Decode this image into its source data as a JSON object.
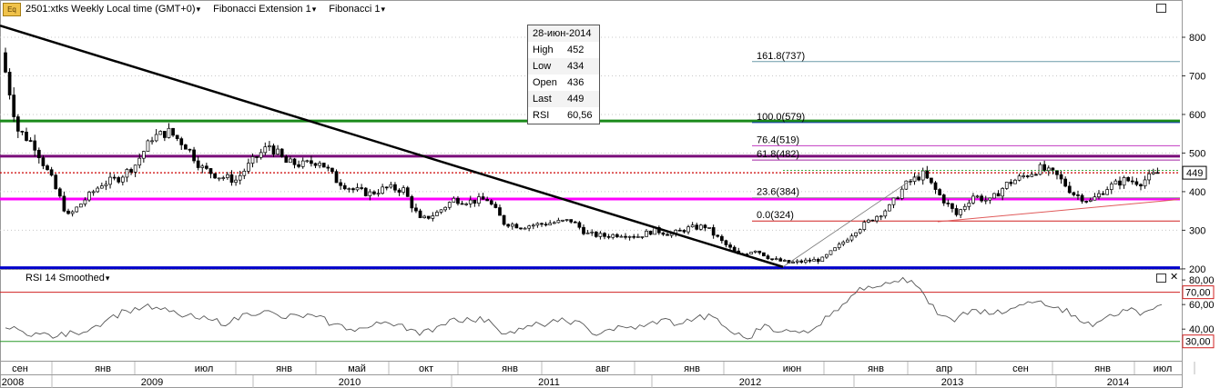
{
  "header": {
    "symbol": "2501:xtks Weekly Local time (GMT+0)",
    "study1": "Fibonacci Extension 1",
    "study2": "Fibonacci 1",
    "symbol_icon": "Eq"
  },
  "tooltip": {
    "date": "28-июн-2014",
    "rows": [
      {
        "k": "High",
        "v": "452"
      },
      {
        "k": "Low",
        "v": "434"
      },
      {
        "k": "Open",
        "v": "436"
      },
      {
        "k": "Last",
        "v": "449"
      },
      {
        "k": "RSI",
        "v": "60,56"
      }
    ]
  },
  "rsi_panel": {
    "title": "RSI 14 Smoothed"
  },
  "colors": {
    "up": "#ffffff",
    "down": "#000000",
    "trend": "#000000",
    "green": "#1a8a1a",
    "purple": "#7a0d7a",
    "magenta": "#ff00ff",
    "blue": "#0000cc",
    "red_dotted": "#cc0000",
    "grid": "#c8c8c8",
    "rsi_line": "#555555"
  },
  "chart_data": [
    {
      "type": "candlestick",
      "title": "",
      "y_ticks": [
        800,
        700,
        600,
        500,
        400,
        300,
        200
      ],
      "ylim": [
        195,
        840
      ],
      "last_price_label": "449",
      "x_ticks": [
        "сен",
        "янв",
        "июл",
        "янв",
        "май",
        "окт",
        "янв",
        "авг",
        "янв",
        "июн",
        "янв",
        "апр",
        "сен",
        "янв",
        "июл"
      ],
      "years": [
        "2008",
        "2009",
        "2010",
        "2011",
        "2012",
        "2013",
        "2014"
      ],
      "horizontal_levels": [
        {
          "name": "green",
          "value": 583
        },
        {
          "name": "purple",
          "value": 492
        },
        {
          "name": "magenta",
          "value": 381
        },
        {
          "name": "blue",
          "value": 203
        },
        {
          "name": "last-dotted",
          "value": 449
        }
      ],
      "fibonacci_extension": [
        {
          "label": "161.8(737)",
          "value": 737
        },
        {
          "label": "100.0(579)",
          "value": 579
        },
        {
          "label": "76.4(519)",
          "value": 519
        },
        {
          "label": "61.8(482)",
          "value": 482
        },
        {
          "label": "23.6(384)",
          "value": 384
        },
        {
          "label": "0.0(324)",
          "value": 324
        }
      ],
      "close_series": [
        {
          "period": "сен 2008",
          "close": 760
        },
        {
          "period": "окт 2008",
          "close": 560
        },
        {
          "period": "ноя 2008",
          "close": 520
        },
        {
          "period": "дек 2008",
          "close": 430
        },
        {
          "period": "янв 2009",
          "close": 335
        },
        {
          "period": "фев 2009",
          "close": 380
        },
        {
          "period": "мар 2009",
          "close": 420
        },
        {
          "period": "апр 2009",
          "close": 435
        },
        {
          "period": "май 2009",
          "close": 470
        },
        {
          "period": "июн 2009",
          "close": 540
        },
        {
          "period": "июл 2009",
          "close": 555
        },
        {
          "period": "авг 2009",
          "close": 520
        },
        {
          "period": "сен 2009",
          "close": 460
        },
        {
          "period": "окт 2009",
          "close": 440
        },
        {
          "period": "ноя 2009",
          "close": 430
        },
        {
          "period": "дек 2009",
          "close": 480
        },
        {
          "period": "янв 2010",
          "close": 520
        },
        {
          "period": "фев 2010",
          "close": 475
        },
        {
          "period": "мар 2010",
          "close": 470
        },
        {
          "period": "апр 2010",
          "close": 480
        },
        {
          "period": "май 2010",
          "close": 430
        },
        {
          "period": "июн 2010",
          "close": 405
        },
        {
          "period": "июл 2010",
          "close": 395
        },
        {
          "period": "авг 2010",
          "close": 410
        },
        {
          "period": "сен 2010",
          "close": 405
        },
        {
          "period": "окт 2010",
          "close": 325
        },
        {
          "period": "ноя 2010",
          "close": 345
        },
        {
          "period": "дек 2010",
          "close": 380
        },
        {
          "period": "янв 2011",
          "close": 375
        },
        {
          "period": "фев 2011",
          "close": 380
        },
        {
          "period": "мар 2011",
          "close": 320
        },
        {
          "period": "апр 2011",
          "close": 310
        },
        {
          "period": "май 2011",
          "close": 315
        },
        {
          "period": "июн 2011",
          "close": 320
        },
        {
          "period": "июл 2011",
          "close": 325
        },
        {
          "period": "авг 2011",
          "close": 290
        },
        {
          "period": "сен 2011",
          "close": 285
        },
        {
          "period": "окт 2011",
          "close": 290
        },
        {
          "period": "ноя 2011",
          "close": 285
        },
        {
          "period": "дек 2011",
          "close": 300
        },
        {
          "period": "янв 2012",
          "close": 290
        },
        {
          "period": "фев 2012",
          "close": 305
        },
        {
          "period": "мар 2012",
          "close": 310
        },
        {
          "period": "апр 2012",
          "close": 270
        },
        {
          "period": "май 2012",
          "close": 235
        },
        {
          "period": "июн 2012",
          "close": 250
        },
        {
          "period": "июл 2012",
          "close": 225
        },
        {
          "period": "авг 2012",
          "close": 215
        },
        {
          "period": "сен 2012",
          "close": 220
        },
        {
          "period": "окт 2012",
          "close": 225
        },
        {
          "period": "ноя 2012",
          "close": 260
        },
        {
          "period": "дек 2012",
          "close": 300
        },
        {
          "period": "янв 2013",
          "close": 330
        },
        {
          "period": "фев 2013",
          "close": 360
        },
        {
          "period": "мар 2013",
          "close": 420
        },
        {
          "period": "апр 2013",
          "close": 445
        },
        {
          "period": "май 2013",
          "close": 390
        },
        {
          "period": "июн 2013",
          "close": 340
        },
        {
          "period": "июл 2013",
          "close": 390
        },
        {
          "period": "авг 2013",
          "close": 375
        },
        {
          "period": "сен 2013",
          "close": 420
        },
        {
          "period": "окт 2013",
          "close": 440
        },
        {
          "period": "ноя 2013",
          "close": 460
        },
        {
          "period": "дек 2013",
          "close": 440
        },
        {
          "period": "янв 2014",
          "close": 395
        },
        {
          "period": "фев 2014",
          "close": 375
        },
        {
          "period": "мар 2014",
          "close": 410
        },
        {
          "period": "апр 2014",
          "close": 430
        },
        {
          "period": "май 2014",
          "close": 425
        },
        {
          "period": "июн 2014",
          "close": 449
        }
      ],
      "rsi": {
        "y_ticks": [
          "80,00",
          "60,00",
          "40,00"
        ],
        "levels": [
          {
            "label": "70,00",
            "value": 70
          },
          {
            "label": "30,00",
            "value": 30
          }
        ],
        "ylim": [
          15,
          86
        ],
        "values": [
          41,
          38,
          36,
          34,
          37,
          41,
          49,
          55,
          58,
          56,
          52,
          49,
          47,
          45,
          53,
          55,
          49,
          51,
          50,
          44,
          40,
          41,
          46,
          44,
          35,
          42,
          49,
          47,
          48,
          36,
          40,
          44,
          46,
          47,
          36,
          40,
          41,
          42,
          48,
          44,
          49,
          50,
          38,
          32,
          44,
          38,
          37,
          42,
          55,
          67,
          75,
          78,
          82,
          73,
          52,
          46,
          56,
          52,
          54,
          60,
          63,
          58,
          51,
          42,
          52,
          55,
          54,
          60
        ],
        "last_value": "60,56"
      }
    }
  ]
}
